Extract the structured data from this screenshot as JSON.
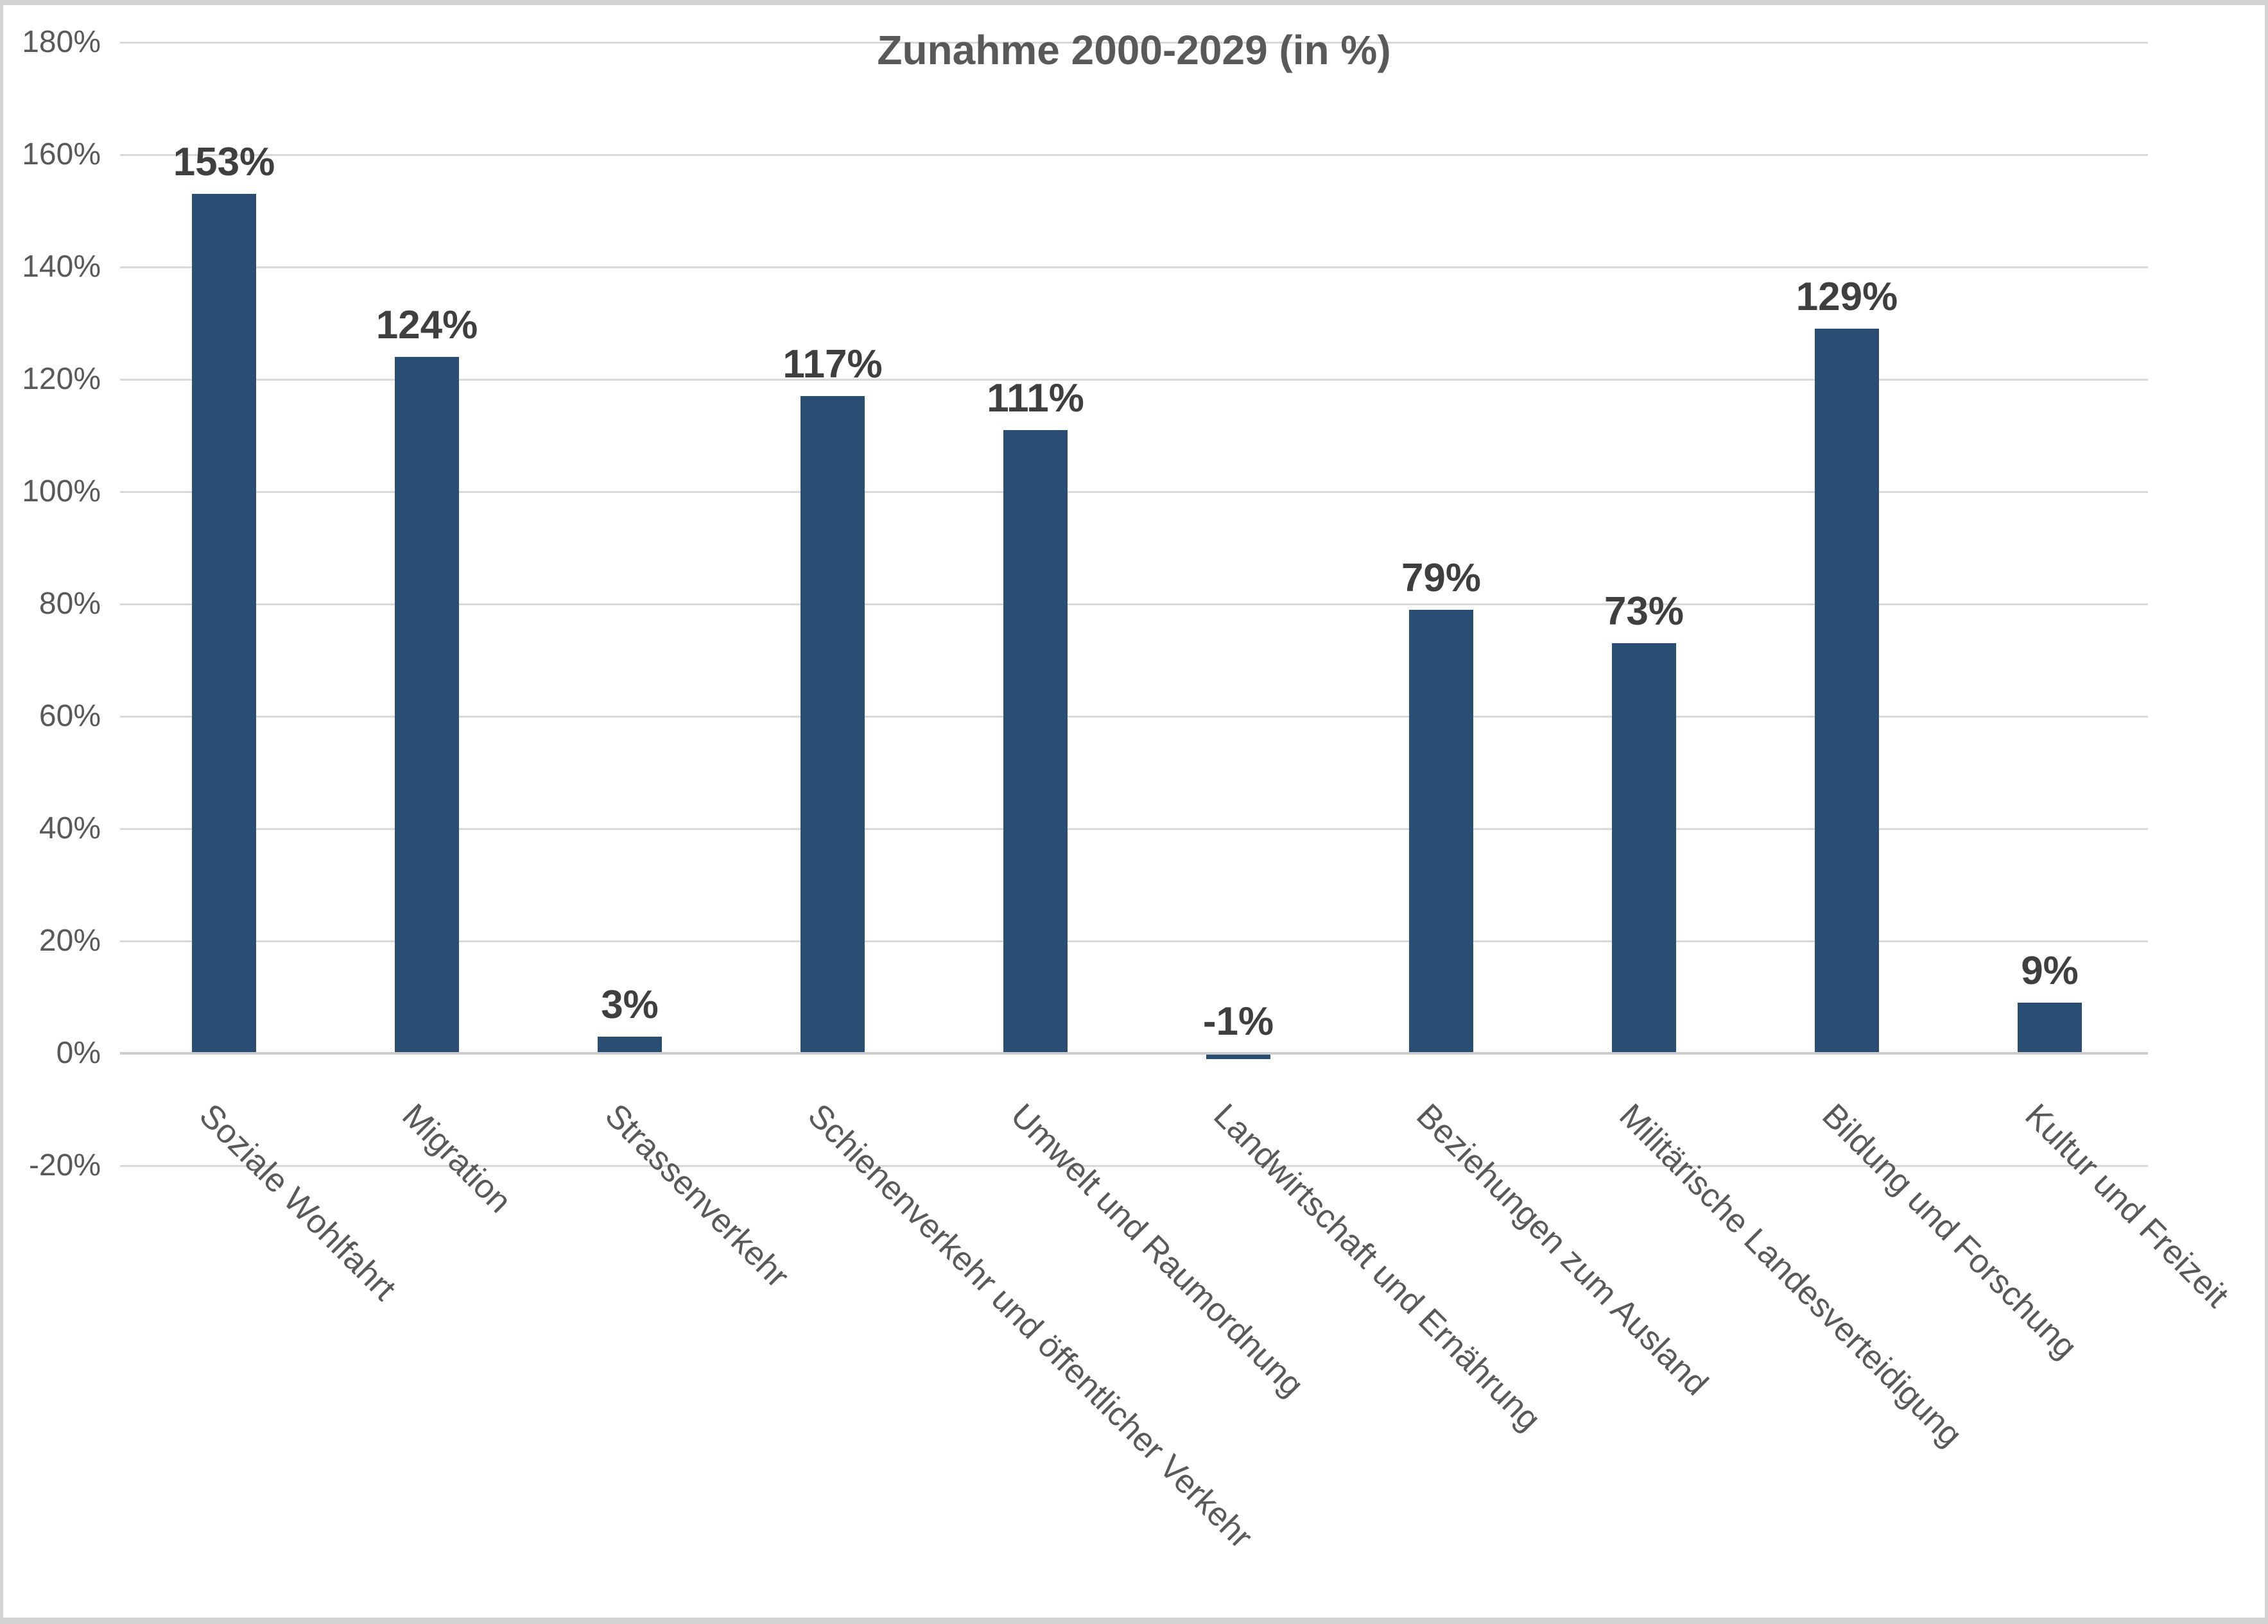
{
  "title": "Zunahme 2000-2029 (in %)",
  "chart_data": {
    "type": "bar",
    "title": "Zunahme 2000-2029 (in %)",
    "categories": [
      "Soziale Wohlfahrt",
      "Migration",
      "Strassenverkehr",
      "Schienenverkehr und öffentlicher Verkehr",
      "Umwelt und Raumordnung",
      "Landwirtschaft und Ernährung",
      "Beziehungen zum Ausland",
      "Militärische Landesverteidigung",
      "Bildung und Forschung",
      "Kultur und Freizeit"
    ],
    "values": [
      153,
      124,
      3,
      117,
      111,
      -1,
      79,
      73,
      129,
      9
    ],
    "data_labels": [
      "153%",
      "124%",
      "3%",
      "117%",
      "111%",
      "-1%",
      "79%",
      "73%",
      "129%",
      "9%"
    ],
    "xlabel": "",
    "ylabel": "",
    "ylim": [
      -20,
      180
    ],
    "ytick_values": [
      180,
      160,
      140,
      120,
      100,
      80,
      60,
      40,
      20,
      0,
      -20
    ],
    "ytick_labels": [
      "180%",
      "160%",
      "140%",
      "120%",
      "100%",
      "80%",
      "60%",
      "40%",
      "20%",
      "0%",
      "-20%"
    ],
    "grid": true,
    "legend_position": "none",
    "bar_color": "#2a4d73",
    "gridline_color": "#d9d9d9",
    "axis_line_color": "#cdcdcd",
    "title_color": "#595959",
    "data_label_color": "#3f3f3f",
    "tick_label_color": "#595959",
    "background_color": "#ffffff",
    "frame_color": "#d4d4d4"
  }
}
